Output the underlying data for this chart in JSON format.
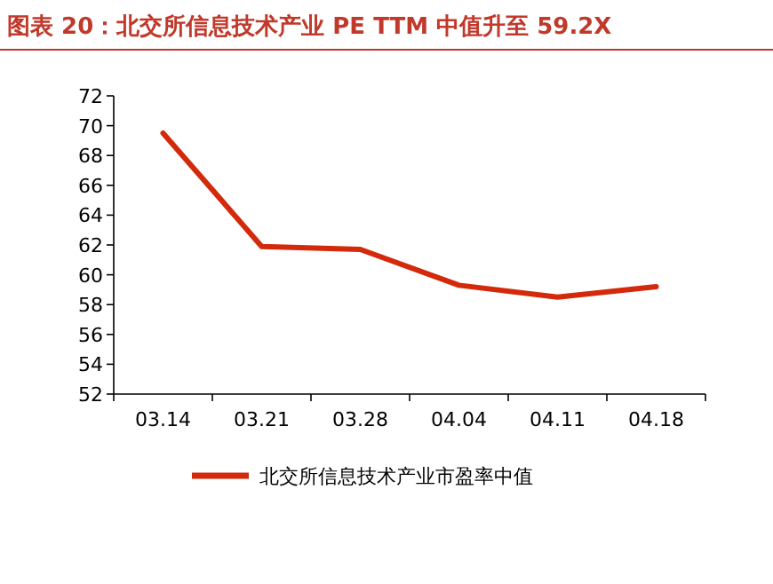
{
  "chart_data": {
    "type": "line",
    "title": "图表 20：北交所信息技术产业 PE TTM 中值升至 59.2X",
    "categories": [
      "03.14",
      "03.21",
      "03.28",
      "04.04",
      "04.11",
      "04.18"
    ],
    "series": [
      {
        "name": "北交所信息技术产业市盈率中值",
        "color": "#d42a0c",
        "values": [
          69.5,
          61.9,
          61.7,
          59.3,
          58.5,
          59.2
        ]
      }
    ],
    "ylim": [
      52,
      72
    ],
    "yticks": [
      52,
      54,
      56,
      58,
      60,
      62,
      64,
      66,
      68,
      70,
      72
    ],
    "legend": "bottom"
  }
}
